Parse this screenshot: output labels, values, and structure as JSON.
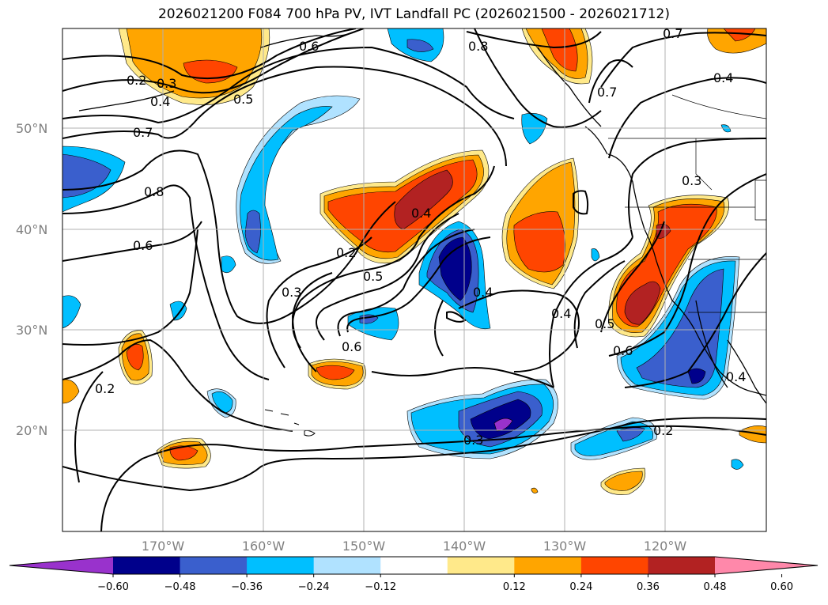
{
  "title": "2026021200 F084 700 hPa PV, IVT Landfall PC (2026021500 - 2026021712)",
  "lat_labels": [
    "50°N",
    "40°N",
    "30°N",
    "20°N"
  ],
  "lon_labels": [
    "170°W",
    "160°W",
    "150°W",
    "140°W",
    "130°W",
    "120°W"
  ],
  "contour_labels": [
    "0.2",
    "0.3",
    "0.4",
    "0.5",
    "0.7",
    "0.8",
    "0.6",
    "0.2",
    "0.6",
    "0.2",
    "0.5",
    "0.4",
    "0.3",
    "0.6",
    "0.4",
    "0.3",
    "0.4",
    "0.5",
    "0.6",
    "0.3",
    "0.2",
    "0.4",
    "0.7",
    "0.8",
    "0.7",
    "0.6",
    "0.4"
  ],
  "colorbar": {
    "ticks": [
      "−0.60",
      "−0.48",
      "−0.36",
      "−0.24",
      "−0.12",
      "0.12",
      "0.24",
      "0.36",
      "0.48",
      "0.60"
    ],
    "colors": [
      "#9932cc",
      "#00008b",
      "#3a5fcd",
      "#00bfff",
      "#b0e2ff",
      "#ffffff",
      "#ffe98a",
      "#ffa500",
      "#ff4500",
      "#b22222",
      "#ff88aa"
    ]
  }
}
